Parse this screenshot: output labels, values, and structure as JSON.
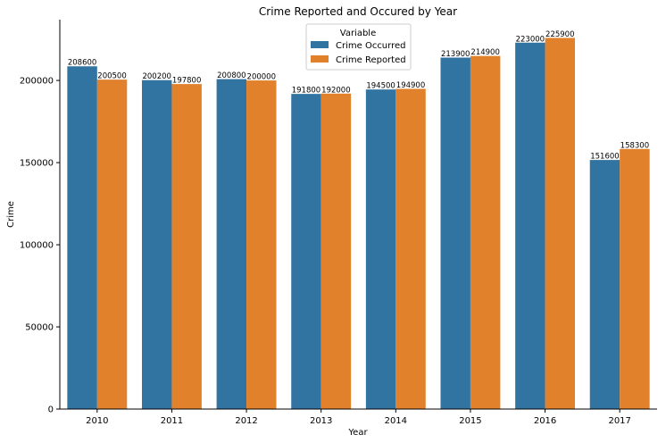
{
  "chart_data": {
    "type": "bar",
    "title": "Crime Reported and Occured by Year",
    "xlabel": "Year",
    "ylabel": "Crime",
    "categories": [
      "2010",
      "2011",
      "2012",
      "2013",
      "2014",
      "2015",
      "2016",
      "2017"
    ],
    "series": [
      {
        "name": "Crime Occurred",
        "color": "#3274a1",
        "values": [
          208600,
          200200,
          200800,
          191800,
          194500,
          213900,
          223000,
          151600
        ]
      },
      {
        "name": "Crime Reported",
        "color": "#e1812c",
        "values": [
          200500,
          197800,
          200000,
          192000,
          194900,
          214900,
          225900,
          158300
        ]
      }
    ],
    "yticks": [
      0,
      50000,
      100000,
      150000,
      200000
    ],
    "ylim": [
      0,
      237000
    ],
    "legend": {
      "title": "Variable",
      "position": "top-center"
    },
    "grid": false
  }
}
